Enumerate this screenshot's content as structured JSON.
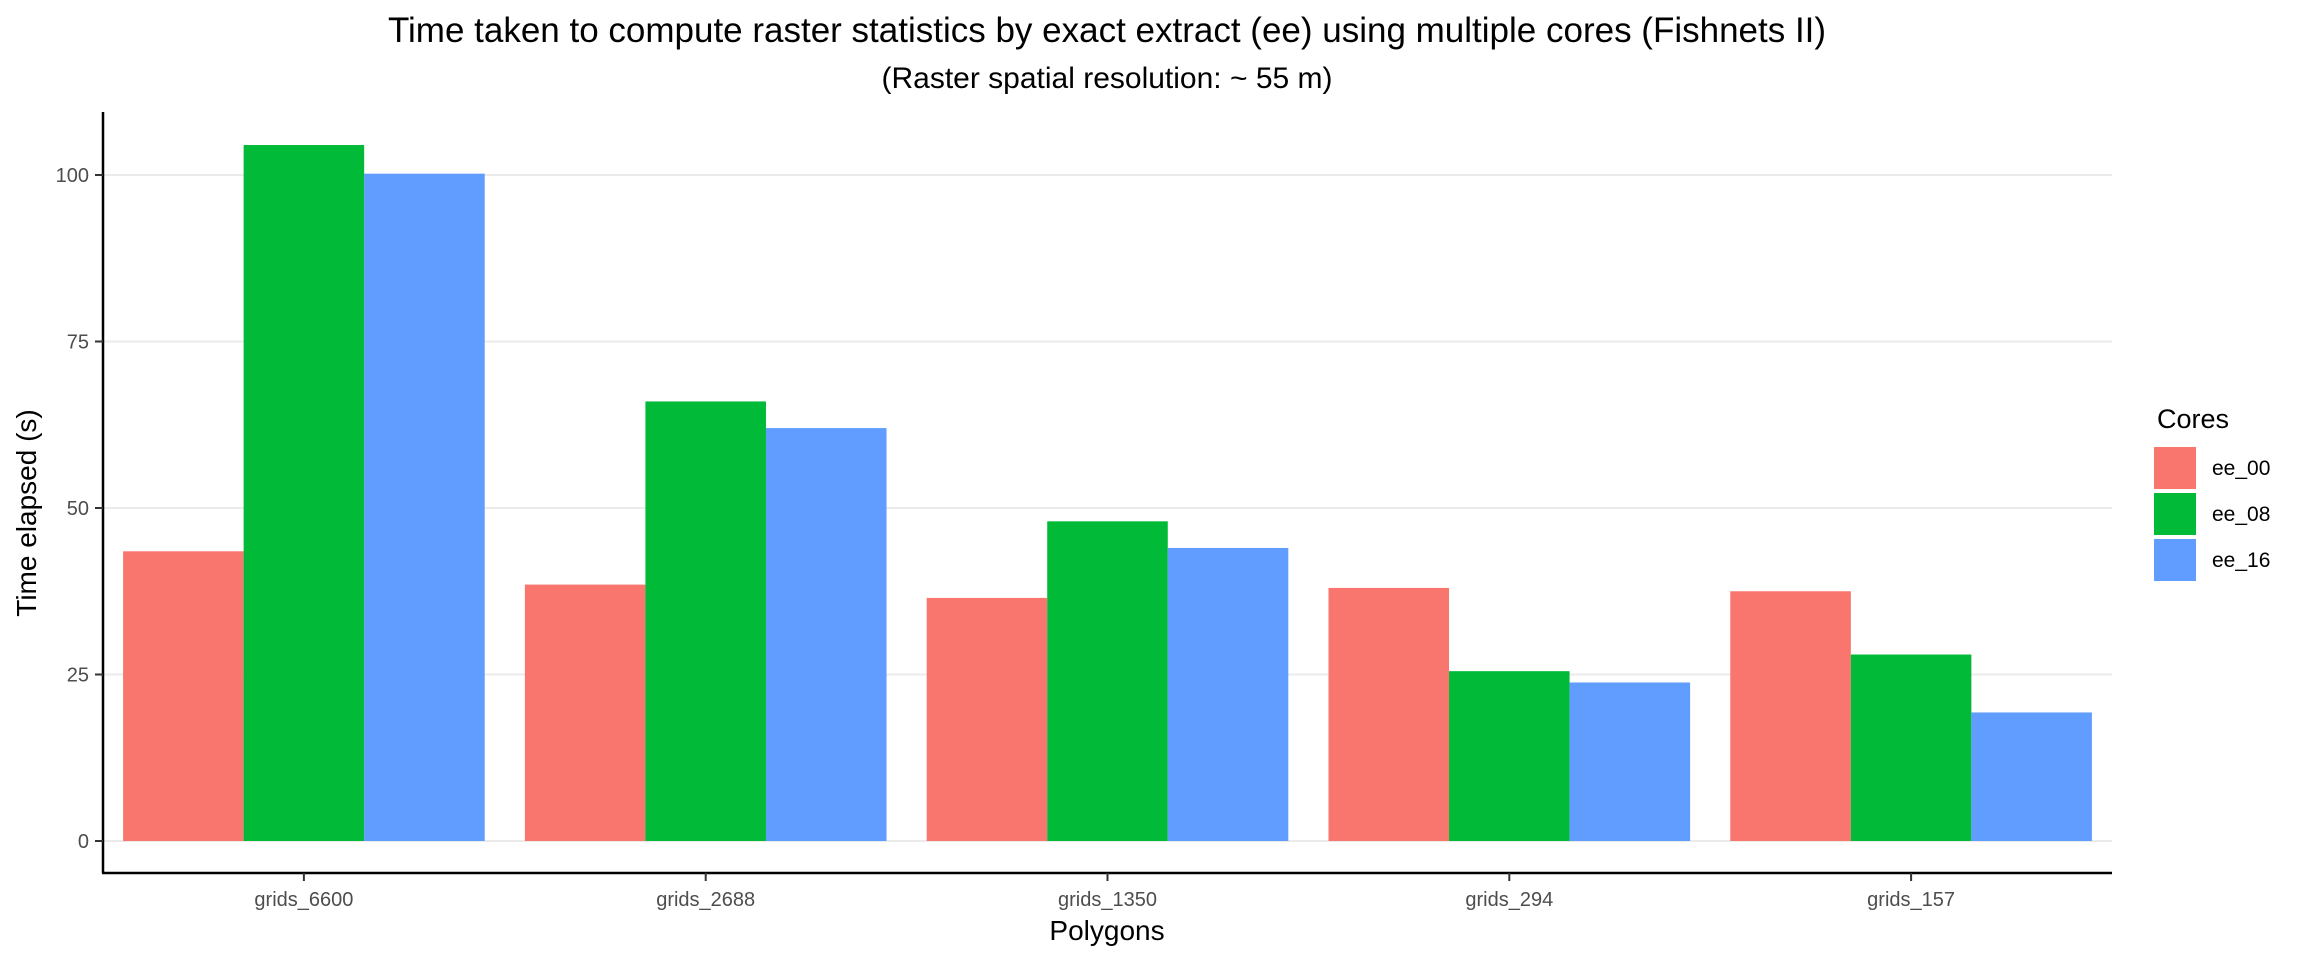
{
  "chart_data": {
    "type": "bar",
    "title": "Time taken to compute raster statistics by exact extract (ee) using multiple cores (Fishnets II)",
    "subtitle": "(Raster spatial resolution: ~ 55 m)",
    "xlabel": "Polygons",
    "ylabel": "Time elapsed (s)",
    "categories": [
      "grids_6600",
      "grids_2688",
      "grids_1350",
      "grids_294",
      "grids_157"
    ],
    "series": [
      {
        "name": "ee_00",
        "color": "#F8766D",
        "values": [
          43.5,
          38.5,
          36.5,
          38.0,
          37.5
        ]
      },
      {
        "name": "ee_08",
        "color": "#00BA38",
        "values": [
          104.5,
          66.0,
          48.0,
          25.5,
          28.0
        ]
      },
      {
        "name": "ee_16",
        "color": "#619CFF",
        "values": [
          100.2,
          62.0,
          44.0,
          23.8,
          19.3
        ]
      }
    ],
    "ylim": [
      0,
      110
    ],
    "yticks": [
      0,
      25,
      50,
      75,
      100
    ],
    "legend": {
      "title": "Cores",
      "position": "right"
    },
    "grid": "horizontal major"
  }
}
